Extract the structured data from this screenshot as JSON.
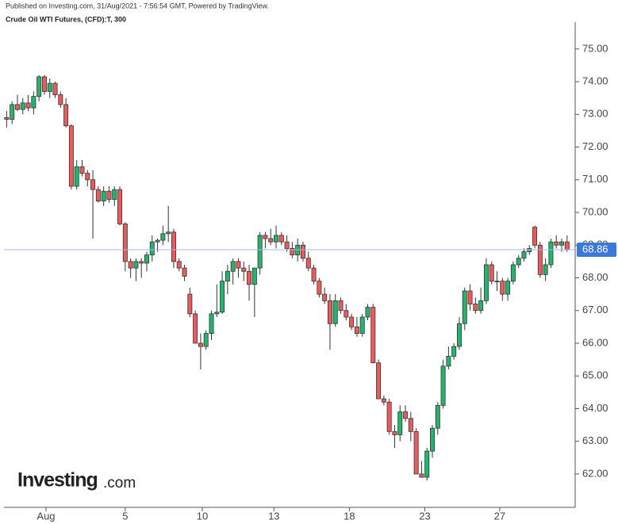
{
  "header": "Published on Investing.com, 31/Aug/2021 - 7:56:54 GMT, Powered by TradingView.",
  "logo": {
    "name": "Investing",
    "suffix": ".com"
  },
  "chart_data": {
    "type": "candlestick",
    "title": "Crude Oil WTI Futures, (CFD):T, 300",
    "up_color": "#26b36e",
    "down_color": "#ec5b5b",
    "ohlc": [
      [
        72.9,
        73.1,
        72.6,
        72.85
      ],
      [
        72.85,
        73.4,
        72.7,
        73.3
      ],
      [
        73.3,
        73.6,
        73.1,
        73.15
      ],
      [
        73.15,
        73.5,
        73.0,
        73.35
      ],
      [
        73.35,
        73.6,
        73.1,
        73.2
      ],
      [
        73.2,
        73.7,
        73.0,
        73.55
      ],
      [
        73.55,
        74.2,
        73.4,
        74.15
      ],
      [
        74.15,
        74.2,
        73.6,
        73.7
      ],
      [
        73.7,
        74.1,
        73.5,
        73.95
      ],
      [
        73.95,
        74.0,
        73.5,
        73.6
      ],
      [
        73.6,
        73.7,
        73.2,
        73.3
      ],
      [
        73.3,
        73.5,
        72.6,
        72.65
      ],
      [
        72.65,
        72.7,
        70.7,
        70.8
      ],
      [
        70.8,
        71.6,
        70.7,
        71.4
      ],
      [
        71.4,
        71.6,
        71.1,
        71.2
      ],
      [
        71.2,
        71.3,
        70.8,
        71.0
      ],
      [
        71.0,
        71.3,
        69.2,
        70.7
      ],
      [
        70.7,
        70.8,
        70.3,
        70.35
      ],
      [
        70.35,
        70.8,
        70.2,
        70.65
      ],
      [
        70.65,
        70.8,
        70.3,
        70.4
      ],
      [
        70.4,
        70.8,
        70.2,
        70.7
      ],
      [
        70.7,
        70.8,
        69.6,
        69.65
      ],
      [
        69.65,
        69.7,
        68.2,
        68.5
      ],
      [
        68.5,
        68.6,
        68.0,
        68.3
      ],
      [
        68.3,
        68.6,
        67.9,
        68.5
      ],
      [
        68.5,
        68.6,
        68.0,
        68.45
      ],
      [
        68.45,
        68.8,
        68.2,
        68.7
      ],
      [
        68.7,
        69.3,
        68.5,
        69.1
      ],
      [
        69.1,
        69.2,
        68.8,
        69.15
      ],
      [
        69.15,
        69.6,
        69.0,
        69.35
      ],
      [
        69.35,
        70.2,
        69.1,
        69.4
      ],
      [
        69.4,
        69.5,
        68.3,
        68.5
      ],
      [
        68.5,
        68.6,
        68.2,
        68.3
      ],
      [
        68.3,
        68.4,
        67.9,
        68.05
      ],
      [
        67.5,
        67.7,
        66.8,
        66.9
      ],
      [
        66.9,
        67.0,
        66.0,
        66.0
      ],
      [
        66.0,
        66.3,
        65.2,
        65.9
      ],
      [
        65.9,
        66.4,
        65.8,
        66.3
      ],
      [
        66.3,
        67.0,
        66.1,
        66.9
      ],
      [
        66.9,
        67.8,
        66.8,
        66.95
      ],
      [
        66.95,
        68.2,
        66.9,
        67.9
      ],
      [
        67.9,
        68.4,
        67.5,
        68.2
      ],
      [
        68.2,
        68.6,
        67.8,
        68.5
      ],
      [
        68.5,
        68.6,
        68.0,
        68.3
      ],
      [
        68.3,
        68.5,
        67.9,
        68.2
      ],
      [
        68.2,
        68.4,
        67.3,
        67.8
      ],
      [
        67.8,
        68.3,
        66.8,
        68.3
      ],
      [
        68.3,
        69.4,
        68.1,
        69.3
      ],
      [
        69.3,
        69.4,
        68.9,
        69.2
      ],
      [
        69.2,
        69.5,
        69.0,
        69.1
      ],
      [
        69.1,
        69.6,
        68.9,
        69.3
      ],
      [
        69.3,
        69.4,
        69.0,
        69.1
      ],
      [
        69.1,
        69.3,
        68.8,
        68.9
      ],
      [
        68.9,
        69.1,
        68.6,
        68.7
      ],
      [
        68.7,
        69.2,
        68.5,
        69.0
      ],
      [
        69.0,
        69.1,
        68.5,
        68.6
      ],
      [
        68.6,
        68.8,
        68.2,
        68.3
      ],
      [
        68.3,
        68.4,
        67.8,
        67.9
      ],
      [
        67.9,
        68.0,
        67.4,
        67.5
      ],
      [
        67.5,
        67.7,
        67.2,
        67.3
      ],
      [
        67.3,
        67.5,
        65.8,
        66.6
      ],
      [
        66.6,
        67.5,
        66.5,
        67.3
      ],
      [
        67.3,
        67.4,
        66.9,
        67.0
      ],
      [
        67.0,
        67.2,
        66.7,
        66.8
      ],
      [
        66.8,
        66.9,
        66.4,
        66.5
      ],
      [
        66.5,
        66.8,
        66.2,
        66.3
      ],
      [
        66.3,
        66.9,
        66.2,
        66.8
      ],
      [
        66.8,
        67.2,
        66.7,
        67.1
      ],
      [
        67.1,
        67.2,
        65.4,
        65.4
      ],
      [
        65.4,
        65.5,
        64.3,
        64.3
      ],
      [
        64.3,
        64.4,
        64.1,
        64.2
      ],
      [
        64.2,
        64.3,
        63.2,
        63.3
      ],
      [
        63.3,
        63.5,
        62.8,
        63.2
      ],
      [
        63.2,
        64.1,
        63.0,
        63.9
      ],
      [
        63.9,
        64.1,
        63.6,
        63.7
      ],
      [
        63.7,
        63.9,
        63.0,
        63.3
      ],
      [
        63.3,
        63.4,
        62.0,
        62.0
      ],
      [
        62.0,
        62.4,
        61.9,
        61.9
      ],
      [
        61.9,
        62.8,
        61.8,
        62.7
      ],
      [
        62.7,
        63.5,
        62.5,
        63.4
      ],
      [
        63.4,
        64.2,
        63.2,
        64.1
      ],
      [
        64.1,
        65.5,
        64.0,
        65.3
      ],
      [
        65.3,
        65.9,
        65.2,
        65.6
      ],
      [
        65.6,
        66.0,
        65.5,
        65.9
      ],
      [
        65.9,
        66.8,
        65.8,
        66.6
      ],
      [
        66.6,
        67.7,
        66.4,
        67.6
      ],
      [
        67.6,
        67.8,
        67.0,
        67.2
      ],
      [
        67.2,
        67.4,
        66.9,
        67.0
      ],
      [
        67.0,
        67.7,
        66.9,
        67.3
      ],
      [
        67.3,
        68.6,
        67.2,
        68.4
      ],
      [
        68.4,
        68.5,
        67.8,
        67.9
      ],
      [
        67.9,
        68.2,
        67.6,
        67.9
      ],
      [
        67.9,
        68.0,
        67.3,
        67.5
      ],
      [
        67.5,
        68.0,
        67.3,
        67.9
      ],
      [
        67.9,
        68.5,
        67.8,
        68.4
      ],
      [
        68.4,
        68.7,
        68.3,
        68.6
      ],
      [
        68.6,
        68.9,
        68.5,
        68.8
      ],
      [
        68.8,
        69.0,
        68.7,
        68.9
      ],
      [
        69.55,
        69.6,
        68.9,
        69.0
      ],
      [
        69.0,
        69.1,
        68.0,
        68.1
      ],
      [
        68.1,
        68.6,
        67.9,
        68.4
      ],
      [
        68.4,
        69.2,
        68.3,
        69.1
      ],
      [
        69.1,
        69.3,
        68.9,
        69.0
      ],
      [
        69.0,
        69.2,
        68.8,
        69.1
      ],
      [
        69.1,
        69.3,
        68.8,
        68.86
      ]
    ],
    "last_price": 68.86,
    "last_price_color": "#3c78d8",
    "xlim": [
      -0.5,
      105.5
    ],
    "xticks": [
      {
        "value": 7.3,
        "label": "Aug"
      },
      {
        "value": 22.0,
        "label": "5"
      },
      {
        "value": 36.3,
        "label": "10"
      },
      {
        "value": 49.6,
        "label": "13"
      },
      {
        "value": 63.6,
        "label": "18"
      },
      {
        "value": 77.6,
        "label": "23"
      },
      {
        "value": 91.5,
        "label": "27"
      }
    ],
    "ylim": [
      60.98,
      75.82
    ],
    "yticks": [
      {
        "value": 62,
        "label": "62.00"
      },
      {
        "value": 63,
        "label": "63.00"
      },
      {
        "value": 64,
        "label": "64.00"
      },
      {
        "value": 65,
        "label": "65.00"
      },
      {
        "value": 66,
        "label": "66.00"
      },
      {
        "value": 67,
        "label": "67.00"
      },
      {
        "value": 68,
        "label": "68.00"
      },
      {
        "value": 69,
        "label": "69.00"
      },
      {
        "value": 70,
        "label": "70.00"
      },
      {
        "value": 71,
        "label": "71.00"
      },
      {
        "value": 72,
        "label": "72.00"
      },
      {
        "value": 73,
        "label": "73.00"
      },
      {
        "value": 74,
        "label": "74.00"
      },
      {
        "value": 75,
        "label": "75.00"
      }
    ]
  }
}
